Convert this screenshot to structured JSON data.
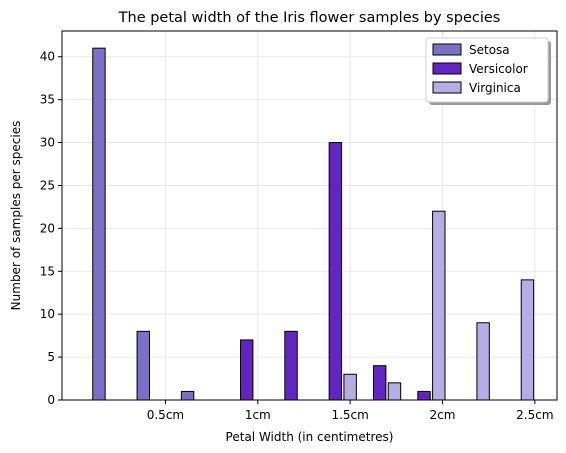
{
  "chart_data": {
    "type": "bar",
    "title": "The petal width of the Iris flower samples by species",
    "xlabel": "Petal Width (in centimetres)",
    "ylabel": "Number of samples per species",
    "x_ticks": [
      {
        "value": 0.5,
        "label": "0.5cm"
      },
      {
        "value": 1.0,
        "label": "1cm"
      },
      {
        "value": 1.5,
        "label": "1.5cm"
      },
      {
        "value": 2.0,
        "label": "2cm"
      },
      {
        "value": 2.5,
        "label": "2.5cm"
      }
    ],
    "y_ticks": [
      0,
      5,
      10,
      15,
      20,
      25,
      30,
      35,
      40
    ],
    "xlim": [
      -0.06,
      2.62
    ],
    "ylim": [
      0,
      43
    ],
    "grid": true,
    "legend_position": "top-right",
    "bin_starts": [
      0.1,
      0.34,
      0.58,
      0.82,
      1.06,
      1.3,
      1.54,
      1.78,
      2.02,
      2.26
    ],
    "bin_width": 0.24,
    "series": [
      {
        "name": "Setosa",
        "color": "#7b6fc8",
        "values": [
          41,
          8,
          1,
          0,
          0,
          0,
          0,
          0,
          0,
          0
        ]
      },
      {
        "name": "Versicolor",
        "color": "#6325c2",
        "values": [
          0,
          0,
          0,
          7,
          8,
          30,
          4,
          1,
          0,
          0
        ]
      },
      {
        "name": "Virginica",
        "color": "#b5ade3",
        "values": [
          0,
          0,
          0,
          0,
          0,
          3,
          2,
          22,
          9,
          14
        ]
      }
    ]
  }
}
